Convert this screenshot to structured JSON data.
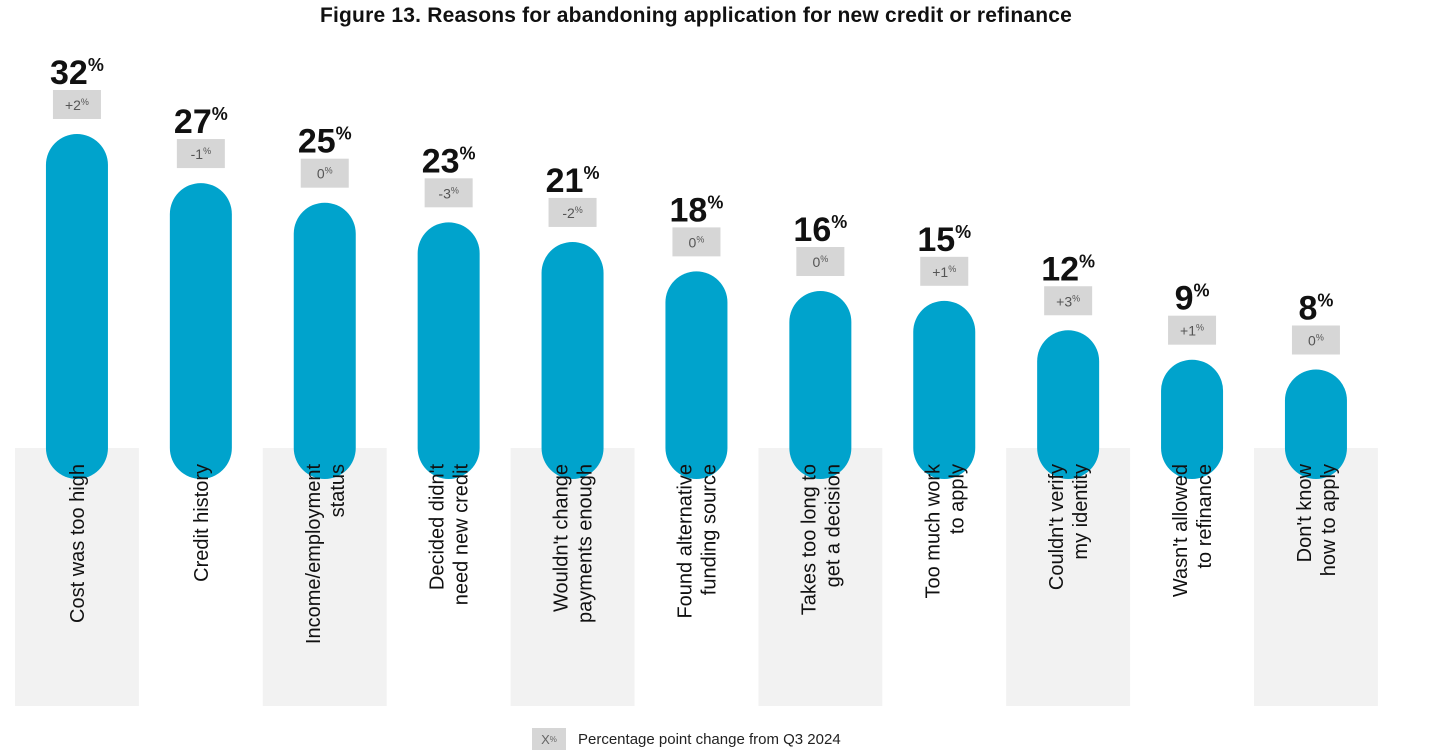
{
  "chart_data": {
    "type": "bar",
    "title": "Figure 13. Reasons for abandoning application for new credit or refinance",
    "categories": [
      "Cost was too high",
      "Credit history",
      "Income/employment status",
      "Decided didn't need new credit",
      "Wouldn't change payments enough",
      "Found alternative funding source",
      "Takes too long to get a decision",
      "Too much work to apply",
      "Couldn't verify my identity",
      "Wasn't allowed to refinance",
      "Don't know how to apply"
    ],
    "category_lines": [
      [
        "Cost was too high"
      ],
      [
        "Credit history"
      ],
      [
        "Income/employment",
        "status"
      ],
      [
        "Decided didn't",
        "need new credit"
      ],
      [
        "Wouldn't change",
        "payments enough"
      ],
      [
        "Found alternative",
        "funding source"
      ],
      [
        "Takes too long to",
        "get a decision"
      ],
      [
        "Too much work",
        "to apply"
      ],
      [
        "Couldn't verify",
        "my identity"
      ],
      [
        "Wasn't allowed",
        "to refinance"
      ],
      [
        "Don't know",
        "how to apply"
      ]
    ],
    "values": [
      32,
      27,
      25,
      23,
      21,
      18,
      16,
      15,
      12,
      9,
      8
    ],
    "value_unit": "%",
    "changes": [
      "+2",
      "-1",
      "0",
      "-3",
      "-2",
      "0",
      "0",
      "+1",
      "+3",
      "+1",
      "0"
    ],
    "change_unit": "%",
    "ylim": [
      0,
      32
    ],
    "colors": {
      "bar": "#00a3cc",
      "label_shade": "#f2f2f2",
      "change_box": "#d6d6d6"
    },
    "legend": {
      "swatch_text": "X",
      "swatch_unit": "%",
      "label": "Percentage point change from Q3 2024"
    }
  }
}
